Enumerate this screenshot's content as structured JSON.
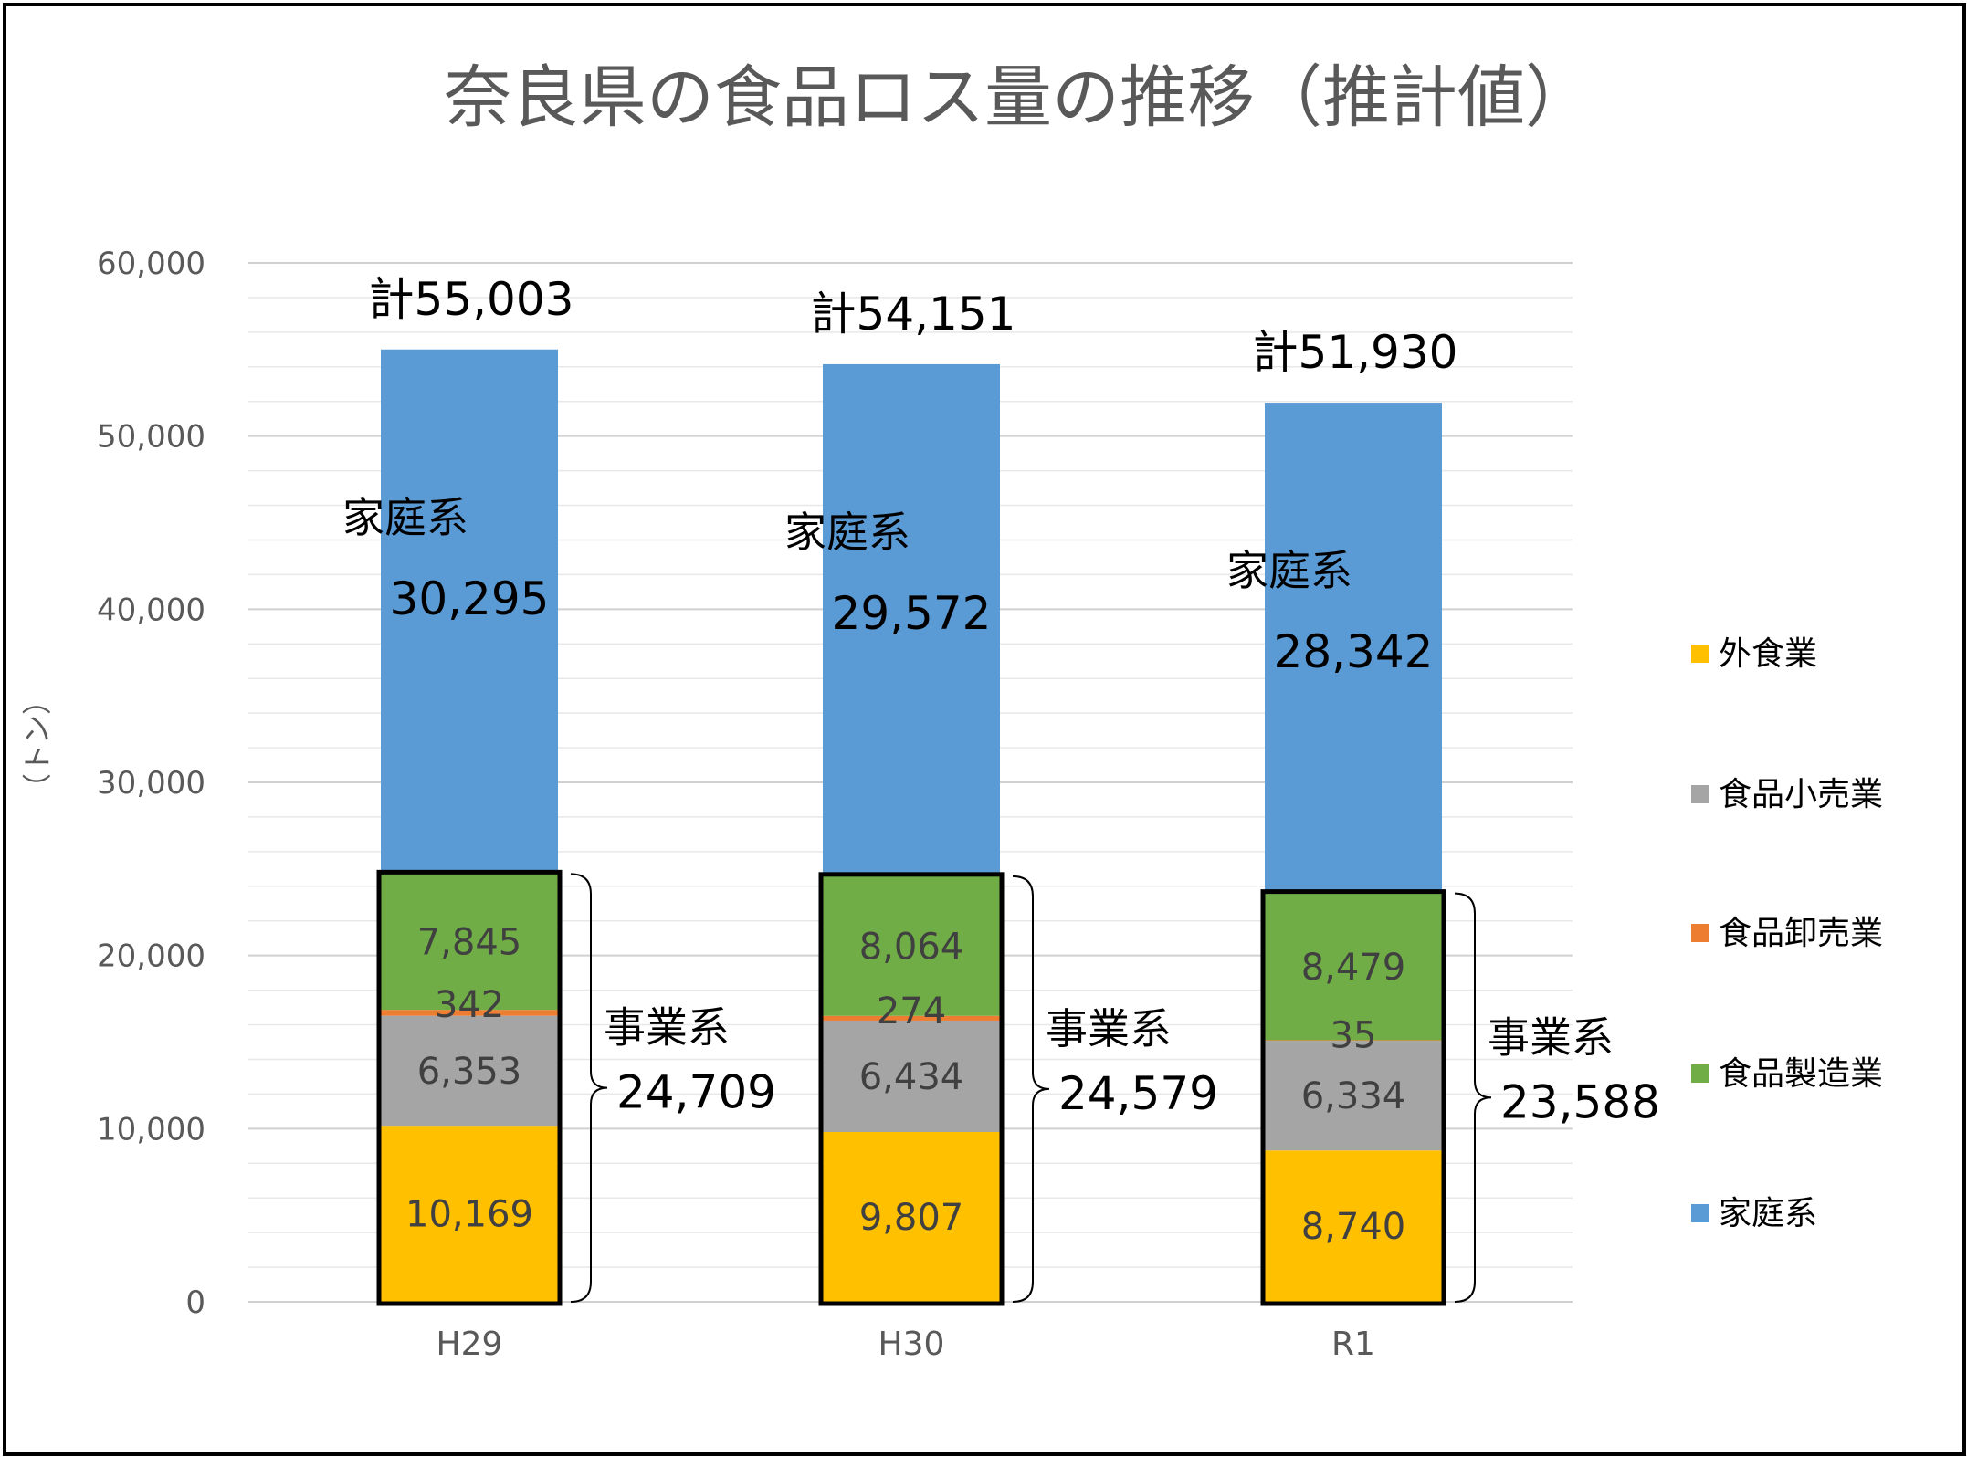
{
  "chart_data": {
    "type": "bar",
    "stacked": true,
    "title": "奈良県の食品ロス量の推移（推計値）",
    "ylabel": "（トン）",
    "ylim": [
      0,
      60000
    ],
    "yticks": [
      "0",
      "10,000",
      "20,000",
      "30,000",
      "40,000",
      "50,000",
      "60,000"
    ],
    "grid": true,
    "legend_position": "right",
    "categories": [
      "H29",
      "H30",
      "R1"
    ],
    "series": [
      {
        "name": "外食業",
        "color": "#FFC000",
        "values": [
          10169,
          9807,
          8740
        ],
        "labels": [
          "10,169",
          "9,807",
          "8,740"
        ]
      },
      {
        "name": "食品小売業",
        "color": "#A5A5A5",
        "values": [
          6353,
          6434,
          6334
        ],
        "labels": [
          "6,353",
          "6,434",
          "6,334"
        ]
      },
      {
        "name": "食品卸売業",
        "color": "#ED7D31",
        "values": [
          342,
          274,
          35
        ],
        "labels": [
          "342",
          "274",
          "35"
        ]
      },
      {
        "name": "食品製造業",
        "color": "#70AD47",
        "values": [
          7845,
          8064,
          8479
        ],
        "labels": [
          "7,845",
          "8,064",
          "8,479"
        ]
      },
      {
        "name": "家庭系",
        "color": "#5B9BD5",
        "values": [
          30295,
          29572,
          28342
        ],
        "labels": [
          "30,295",
          "29,572",
          "28,342"
        ]
      }
    ],
    "totals": [
      "計55,003",
      "計54,151",
      "計51,930"
    ],
    "household_label": "家庭系",
    "household_values": [
      "30,295",
      "29,572",
      "28,342"
    ],
    "business_label": "事業系",
    "business_totals": [
      "24,709",
      "24,579",
      "23,588"
    ]
  }
}
